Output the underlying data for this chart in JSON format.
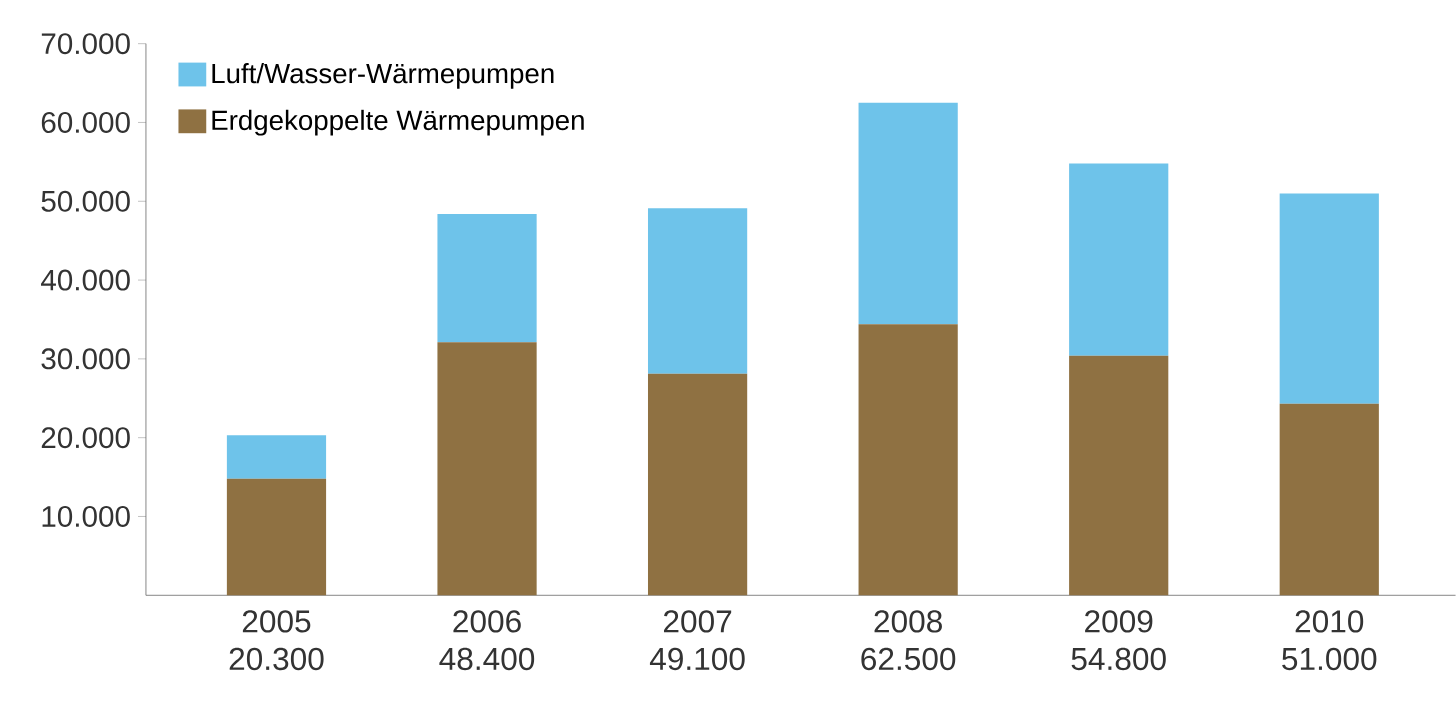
{
  "chart_data": {
    "type": "bar",
    "stacked": true,
    "categories": [
      "2005",
      "2006",
      "2007",
      "2008",
      "2009",
      "2010"
    ],
    "totals": [
      "20.300",
      "48.400",
      "49.100",
      "62.500",
      "54.800",
      "51.000"
    ],
    "series": [
      {
        "name": "Erdgekoppelte Wärmepumpen",
        "color": "#8f7142",
        "values": [
          14800,
          32100,
          28100,
          34400,
          30400,
          24300
        ]
      },
      {
        "name": "Luft/Wasser-Wärmepumpen",
        "color": "#6ec3ea",
        "values": [
          5500,
          16300,
          21000,
          28100,
          24400,
          26700
        ]
      }
    ],
    "ylim": [
      0,
      70000
    ],
    "yticks": [
      {
        "value": 10000,
        "label": "10.000"
      },
      {
        "value": 20000,
        "label": "20.000"
      },
      {
        "value": 30000,
        "label": "30.000"
      },
      {
        "value": 40000,
        "label": "40.000"
      },
      {
        "value": 50000,
        "label": "50.000"
      },
      {
        "value": 60000,
        "label": "60.000"
      },
      {
        "value": 70000,
        "label": "70.000"
      }
    ],
    "legend": "top left"
  }
}
